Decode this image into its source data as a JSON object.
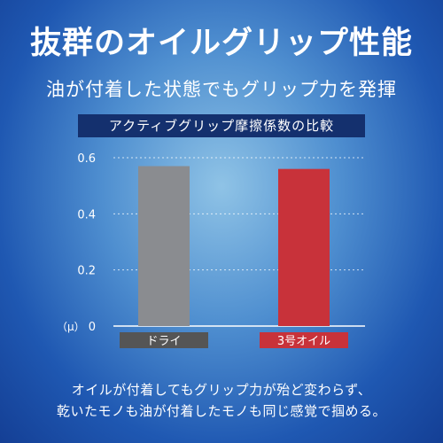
{
  "headline": "抜群のオイルグリップ性能",
  "subheadline": "油が付着した状態でもグリップ力を発揮",
  "chart_data": {
    "type": "bar",
    "title": "アクティブグリップ摩擦係数の比較",
    "ylabel": "（μ）",
    "ylim": [
      0,
      0.6
    ],
    "yticks": [
      0,
      0.2,
      0.4,
      0.6
    ],
    "ytick_labels": [
      "0",
      "0.2",
      "0.4",
      "0.6"
    ],
    "grid": true,
    "categories": [
      "ドライ",
      "3号オイル"
    ],
    "values": [
      0.57,
      0.56
    ],
    "colors": [
      "#8a8c90",
      "#c8323a"
    ],
    "label_colors": [
      "#555555",
      "#c8323a"
    ]
  },
  "caption": {
    "line1": "オイルが付着してもグリップ力が殆ど変わらず、",
    "line2": "乾いたモノも油が付着したモノも同じ感覚で掴める。"
  }
}
